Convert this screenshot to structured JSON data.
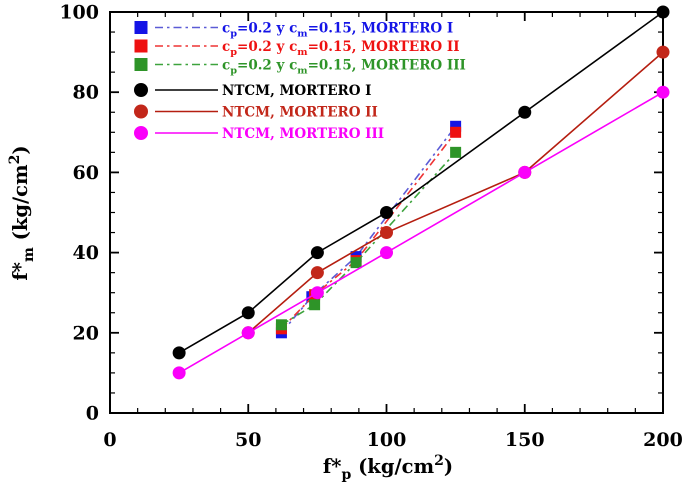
{
  "figure": {
    "background": "#ffffff",
    "border_color": "#000000"
  },
  "chart_data": {
    "type": "line",
    "title": "",
    "xlabel": "f*_{p}  (kg/cm^{2})",
    "ylabel": "f*_{m}  (kg/cm^{2})",
    "xlim": [
      0,
      200
    ],
    "ylim": [
      0,
      100
    ],
    "x_major_ticks": [
      0,
      50,
      100,
      150,
      200
    ],
    "x_minor_step": 10,
    "y_major_ticks": [
      0,
      20,
      40,
      60,
      80,
      100
    ],
    "y_minor_step": 5,
    "grid": false,
    "legend_position": "upper-left",
    "series": [
      {
        "id": "cp02-cm015-mortero-i",
        "label": "c_{p}=0.2 y c_{m}=0.15, MORTERO I",
        "marker": "square",
        "color": "#1414e6",
        "line_color": "#5b5bd6",
        "line_style": "dashdot",
        "points": [
          [
            62,
            20
          ],
          [
            73,
            29
          ],
          [
            89,
            39
          ],
          [
            125,
            71.5
          ]
        ]
      },
      {
        "id": "cp02-cm015-mortero-ii",
        "label": "c_{p}=0.2 y c_{m}=0.15, MORTERO II",
        "marker": "square",
        "color": "#ee1111",
        "line_color": "#ee3333",
        "line_style": "dashdot",
        "points": [
          [
            62,
            21
          ],
          [
            74,
            29.5
          ],
          [
            89,
            38
          ],
          [
            125,
            70
          ]
        ]
      },
      {
        "id": "cp02-cm015-mortero-iii",
        "label": "c_{p}=0.2 y c_{m}=0.15, MORTERO III",
        "marker": "square",
        "color": "#2e9428",
        "line_color": "#3da33d",
        "line_style": "dashdot",
        "points": [
          [
            62,
            22
          ],
          [
            74,
            27
          ],
          [
            89,
            37.5
          ],
          [
            125,
            65
          ]
        ]
      },
      {
        "id": "ntcm-mortero-i",
        "label": "NTCM, MORTERO I",
        "marker": "circle",
        "color": "#000000",
        "line_color": "#000000",
        "line_style": "solid",
        "points": [
          [
            25,
            15
          ],
          [
            50,
            25
          ],
          [
            75,
            40
          ],
          [
            100,
            50
          ],
          [
            150,
            75
          ],
          [
            200,
            100
          ]
        ]
      },
      {
        "id": "ntcm-mortero-ii",
        "label": "NTCM, MORTERO II",
        "marker": "circle",
        "color": "#c2271a",
        "line_color": "#b51e10",
        "line_style": "solid",
        "points": [
          [
            50,
            20
          ],
          [
            75,
            35
          ],
          [
            100,
            45
          ],
          [
            150,
            60
          ],
          [
            200,
            90
          ]
        ]
      },
      {
        "id": "ntcm-mortero-iii",
        "label": "NTCM, MORTERO III",
        "marker": "circle",
        "color": "#fa00fa",
        "line_color": "#fa00fa",
        "line_style": "solid",
        "points": [
          [
            25,
            10
          ],
          [
            50,
            20
          ],
          [
            75,
            30
          ],
          [
            100,
            40
          ],
          [
            150,
            60
          ],
          [
            200,
            80
          ]
        ]
      }
    ],
    "legend_groups": [
      {
        "series": [
          0,
          1,
          2
        ]
      },
      {
        "series": [
          3,
          4,
          5
        ]
      }
    ]
  }
}
